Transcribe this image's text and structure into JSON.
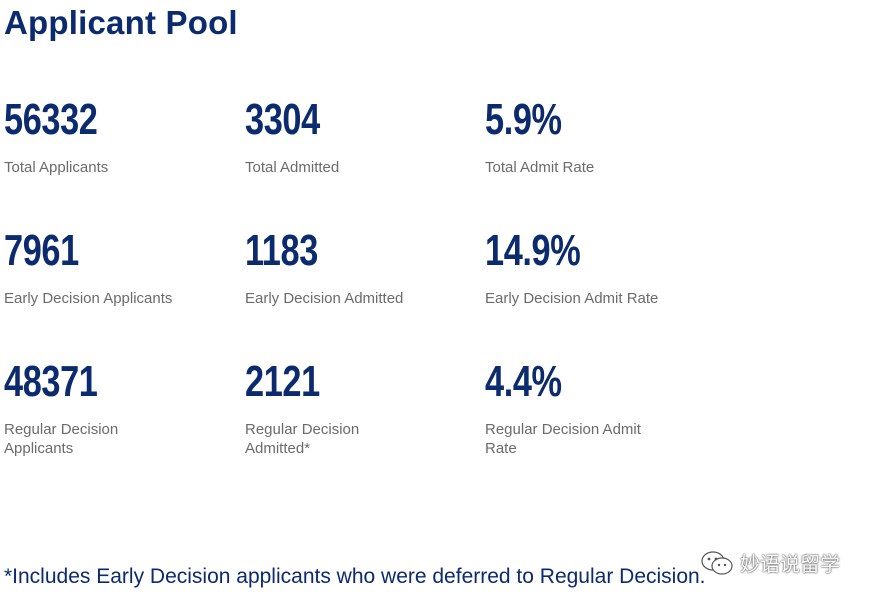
{
  "page": {
    "title": "Applicant Pool",
    "footnote": "*Includes Early Decision applicants who were deferred to Regular Decision."
  },
  "stats": [
    {
      "value": "56332",
      "label": "Total Applicants"
    },
    {
      "value": "3304",
      "label": "Total Admitted"
    },
    {
      "value": "5.9%",
      "label": "Total Admit Rate"
    },
    {
      "value": "7961",
      "label": "Early Decision Applicants"
    },
    {
      "value": "1183",
      "label": "Early Decision Admitted"
    },
    {
      "value": "14.9%",
      "label": "Early Decision Admit Rate"
    },
    {
      "value": "48371",
      "label": "Regular Decision Applicants"
    },
    {
      "value": "2121",
      "label": "Regular Decision Admitted*"
    },
    {
      "value": "4.4%",
      "label": "Regular Decision Admit Rate"
    }
  ],
  "watermark": {
    "icon": "wechat-icon",
    "text": "妙语说留学"
  },
  "colors": {
    "primary": "#0c2a6e",
    "label": "#6b6b6b"
  }
}
